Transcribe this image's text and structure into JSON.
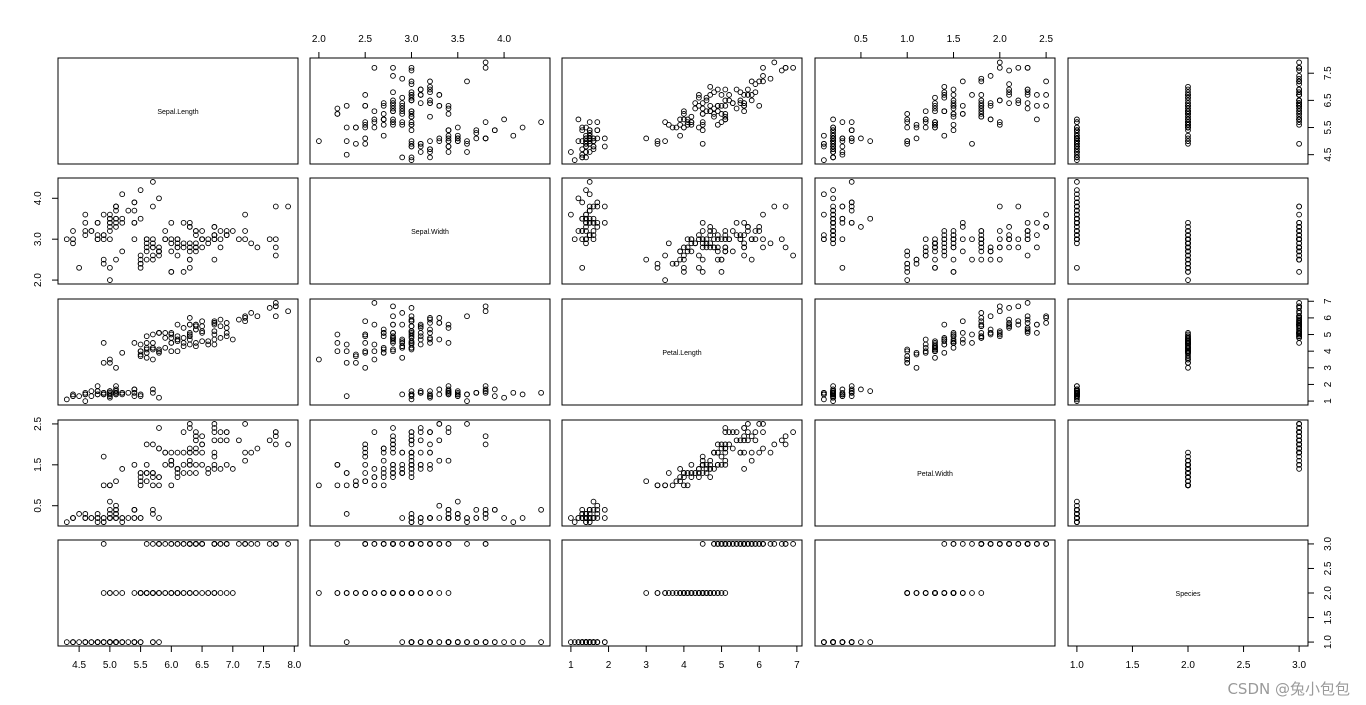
{
  "chart_data": {
    "type": "scatter_matrix",
    "variables": [
      "Sepal.Length",
      "Sepal.Width",
      "Petal.Length",
      "Petal.Width",
      "Species"
    ],
    "ranges": [
      [
        4.3,
        7.9
      ],
      [
        2.0,
        4.4
      ],
      [
        1.0,
        6.9
      ],
      [
        0.1,
        2.5
      ],
      [
        1,
        3
      ]
    ],
    "ticks": [
      [
        "4.5",
        "5.0",
        "5.5",
        "6.0",
        "6.5",
        "7.0",
        "7.5",
        "8.0"
      ],
      [
        "2.0",
        "2.5",
        "3.0",
        "3.5",
        "4.0"
      ],
      [
        "1",
        "2",
        "3",
        "4",
        "5",
        "6",
        "7"
      ],
      [
        "0.5",
        "1.0",
        "1.5",
        "2.0",
        "2.5"
      ],
      [
        "1.0",
        "1.5",
        "2.0",
        "2.5",
        "3.0"
      ]
    ],
    "left_axis_ticks": [
      [
        "4.5",
        "5.5",
        "6.5",
        "7.5"
      ],
      [
        "2.0",
        "3.0",
        "4.0"
      ],
      [
        "1",
        "2",
        "3",
        "4",
        "5",
        "6",
        "7"
      ],
      [
        "0.5",
        "1.5",
        "2.5"
      ],
      [
        "1.0",
        "1.5",
        "2.0",
        "2.5",
        "3.0"
      ]
    ],
    "point_style": "open-circle",
    "grid": false,
    "columns": [
      "Sepal.Length",
      "Sepal.Width",
      "Petal.Length",
      "Petal.Width",
      "Species"
    ],
    "rows": [
      [
        5.1,
        3.5,
        1.4,
        0.2,
        1
      ],
      [
        4.9,
        3.0,
        1.4,
        0.2,
        1
      ],
      [
        4.7,
        3.2,
        1.3,
        0.2,
        1
      ],
      [
        4.6,
        3.1,
        1.5,
        0.2,
        1
      ],
      [
        5.0,
        3.6,
        1.4,
        0.2,
        1
      ],
      [
        5.4,
        3.9,
        1.7,
        0.4,
        1
      ],
      [
        4.6,
        3.4,
        1.4,
        0.3,
        1
      ],
      [
        5.0,
        3.4,
        1.5,
        0.2,
        1
      ],
      [
        4.4,
        2.9,
        1.4,
        0.2,
        1
      ],
      [
        4.9,
        3.1,
        1.5,
        0.1,
        1
      ],
      [
        5.4,
        3.7,
        1.5,
        0.2,
        1
      ],
      [
        4.8,
        3.4,
        1.6,
        0.2,
        1
      ],
      [
        4.8,
        3.0,
        1.4,
        0.1,
        1
      ],
      [
        4.3,
        3.0,
        1.1,
        0.1,
        1
      ],
      [
        5.8,
        4.0,
        1.2,
        0.2,
        1
      ],
      [
        5.7,
        4.4,
        1.5,
        0.4,
        1
      ],
      [
        5.4,
        3.9,
        1.3,
        0.4,
        1
      ],
      [
        5.1,
        3.5,
        1.4,
        0.3,
        1
      ],
      [
        5.7,
        3.8,
        1.7,
        0.3,
        1
      ],
      [
        5.1,
        3.8,
        1.5,
        0.3,
        1
      ],
      [
        5.4,
        3.4,
        1.7,
        0.2,
        1
      ],
      [
        5.1,
        3.7,
        1.5,
        0.4,
        1
      ],
      [
        4.6,
        3.6,
        1.0,
        0.2,
        1
      ],
      [
        5.1,
        3.3,
        1.7,
        0.5,
        1
      ],
      [
        4.8,
        3.4,
        1.9,
        0.2,
        1
      ],
      [
        5.0,
        3.0,
        1.6,
        0.2,
        1
      ],
      [
        5.0,
        3.4,
        1.6,
        0.4,
        1
      ],
      [
        5.2,
        3.5,
        1.5,
        0.2,
        1
      ],
      [
        5.2,
        3.4,
        1.4,
        0.2,
        1
      ],
      [
        4.7,
        3.2,
        1.6,
        0.2,
        1
      ],
      [
        4.8,
        3.1,
        1.6,
        0.2,
        1
      ],
      [
        5.4,
        3.4,
        1.5,
        0.4,
        1
      ],
      [
        5.2,
        4.1,
        1.5,
        0.1,
        1
      ],
      [
        5.5,
        4.2,
        1.4,
        0.2,
        1
      ],
      [
        4.9,
        3.1,
        1.5,
        0.2,
        1
      ],
      [
        5.0,
        3.2,
        1.2,
        0.2,
        1
      ],
      [
        5.5,
        3.5,
        1.3,
        0.2,
        1
      ],
      [
        4.9,
        3.6,
        1.4,
        0.1,
        1
      ],
      [
        4.4,
        3.0,
        1.3,
        0.2,
        1
      ],
      [
        5.1,
        3.4,
        1.5,
        0.2,
        1
      ],
      [
        5.0,
        3.5,
        1.3,
        0.3,
        1
      ],
      [
        4.5,
        2.3,
        1.3,
        0.3,
        1
      ],
      [
        4.4,
        3.2,
        1.3,
        0.2,
        1
      ],
      [
        5.0,
        3.5,
        1.6,
        0.6,
        1
      ],
      [
        5.1,
        3.8,
        1.9,
        0.4,
        1
      ],
      [
        4.8,
        3.0,
        1.4,
        0.3,
        1
      ],
      [
        5.1,
        3.8,
        1.6,
        0.2,
        1
      ],
      [
        4.6,
        3.2,
        1.4,
        0.2,
        1
      ],
      [
        5.3,
        3.7,
        1.5,
        0.2,
        1
      ],
      [
        5.0,
        3.3,
        1.4,
        0.2,
        1
      ],
      [
        7.0,
        3.2,
        4.7,
        1.4,
        2
      ],
      [
        6.4,
        3.2,
        4.5,
        1.5,
        2
      ],
      [
        6.9,
        3.1,
        4.9,
        1.5,
        2
      ],
      [
        5.5,
        2.3,
        4.0,
        1.3,
        2
      ],
      [
        6.5,
        2.8,
        4.6,
        1.5,
        2
      ],
      [
        5.7,
        2.8,
        4.5,
        1.3,
        2
      ],
      [
        6.3,
        3.3,
        4.7,
        1.6,
        2
      ],
      [
        4.9,
        2.4,
        3.3,
        1.0,
        2
      ],
      [
        6.6,
        2.9,
        4.6,
        1.3,
        2
      ],
      [
        5.2,
        2.7,
        3.9,
        1.4,
        2
      ],
      [
        5.0,
        2.0,
        3.5,
        1.0,
        2
      ],
      [
        5.9,
        3.0,
        4.2,
        1.5,
        2
      ],
      [
        6.0,
        2.2,
        4.0,
        1.0,
        2
      ],
      [
        6.1,
        2.9,
        4.7,
        1.4,
        2
      ],
      [
        5.6,
        2.9,
        3.6,
        1.3,
        2
      ],
      [
        6.7,
        3.1,
        4.4,
        1.4,
        2
      ],
      [
        5.6,
        3.0,
        4.5,
        1.5,
        2
      ],
      [
        5.8,
        2.7,
        4.1,
        1.0,
        2
      ],
      [
        6.2,
        2.2,
        4.5,
        1.5,
        2
      ],
      [
        5.6,
        2.5,
        3.9,
        1.1,
        2
      ],
      [
        5.9,
        3.2,
        4.8,
        1.8,
        2
      ],
      [
        6.1,
        2.8,
        4.0,
        1.3,
        2
      ],
      [
        6.3,
        2.5,
        4.9,
        1.5,
        2
      ],
      [
        6.1,
        2.8,
        4.7,
        1.2,
        2
      ],
      [
        6.4,
        2.9,
        4.3,
        1.3,
        2
      ],
      [
        6.6,
        3.0,
        4.4,
        1.4,
        2
      ],
      [
        6.8,
        2.8,
        4.8,
        1.4,
        2
      ],
      [
        6.7,
        3.0,
        5.0,
        1.7,
        2
      ],
      [
        6.0,
        2.9,
        4.5,
        1.5,
        2
      ],
      [
        5.7,
        2.6,
        3.5,
        1.0,
        2
      ],
      [
        5.5,
        2.4,
        3.8,
        1.1,
        2
      ],
      [
        5.5,
        2.4,
        3.7,
        1.0,
        2
      ],
      [
        5.8,
        2.7,
        3.9,
        1.2,
        2
      ],
      [
        6.0,
        2.7,
        5.1,
        1.6,
        2
      ],
      [
        5.4,
        3.0,
        4.5,
        1.5,
        2
      ],
      [
        6.0,
        3.4,
        4.5,
        1.6,
        2
      ],
      [
        6.7,
        3.1,
        4.7,
        1.5,
        2
      ],
      [
        6.3,
        2.3,
        4.4,
        1.3,
        2
      ],
      [
        5.6,
        3.0,
        4.1,
        1.3,
        2
      ],
      [
        5.5,
        2.5,
        4.0,
        1.3,
        2
      ],
      [
        5.5,
        2.6,
        4.4,
        1.2,
        2
      ],
      [
        6.1,
        3.0,
        4.6,
        1.4,
        2
      ],
      [
        5.8,
        2.6,
        4.0,
        1.2,
        2
      ],
      [
        5.0,
        2.3,
        3.3,
        1.0,
        2
      ],
      [
        5.6,
        2.7,
        4.2,
        1.3,
        2
      ],
      [
        5.7,
        3.0,
        4.2,
        1.2,
        2
      ],
      [
        5.7,
        2.9,
        4.2,
        1.3,
        2
      ],
      [
        6.2,
        2.9,
        4.3,
        1.3,
        2
      ],
      [
        5.1,
        2.5,
        3.0,
        1.1,
        2
      ],
      [
        5.7,
        2.8,
        4.1,
        1.3,
        2
      ],
      [
        6.3,
        3.3,
        6.0,
        2.5,
        3
      ],
      [
        5.8,
        2.7,
        5.1,
        1.9,
        3
      ],
      [
        7.1,
        3.0,
        5.9,
        2.1,
        3
      ],
      [
        6.3,
        2.9,
        5.6,
        1.8,
        3
      ],
      [
        6.5,
        3.0,
        5.8,
        2.2,
        3
      ],
      [
        7.6,
        3.0,
        6.6,
        2.1,
        3
      ],
      [
        4.9,
        2.5,
        4.5,
        1.7,
        3
      ],
      [
        7.3,
        2.9,
        6.3,
        1.8,
        3
      ],
      [
        6.7,
        2.5,
        5.8,
        1.8,
        3
      ],
      [
        7.2,
        3.6,
        6.1,
        2.5,
        3
      ],
      [
        6.5,
        3.2,
        5.1,
        2.0,
        3
      ],
      [
        6.4,
        2.7,
        5.3,
        1.9,
        3
      ],
      [
        6.8,
        3.0,
        5.5,
        2.1,
        3
      ],
      [
        5.7,
        2.5,
        5.0,
        2.0,
        3
      ],
      [
        5.8,
        2.8,
        5.1,
        2.4,
        3
      ],
      [
        6.4,
        3.2,
        5.3,
        2.3,
        3
      ],
      [
        6.5,
        3.0,
        5.5,
        1.8,
        3
      ],
      [
        7.7,
        3.8,
        6.7,
        2.2,
        3
      ],
      [
        7.7,
        2.6,
        6.9,
        2.3,
        3
      ],
      [
        6.0,
        2.2,
        5.0,
        1.5,
        3
      ],
      [
        6.9,
        3.2,
        5.7,
        2.3,
        3
      ],
      [
        5.6,
        2.8,
        4.9,
        2.0,
        3
      ],
      [
        7.7,
        2.8,
        6.7,
        2.0,
        3
      ],
      [
        6.3,
        2.7,
        4.9,
        1.8,
        3
      ],
      [
        6.7,
        3.3,
        5.7,
        2.1,
        3
      ],
      [
        7.2,
        3.2,
        6.0,
        1.8,
        3
      ],
      [
        6.2,
        2.8,
        4.8,
        1.8,
        3
      ],
      [
        6.1,
        3.0,
        4.9,
        1.8,
        3
      ],
      [
        6.4,
        2.8,
        5.6,
        2.1,
        3
      ],
      [
        7.2,
        3.0,
        5.8,
        1.6,
        3
      ],
      [
        7.4,
        2.8,
        6.1,
        1.9,
        3
      ],
      [
        7.9,
        3.8,
        6.4,
        2.0,
        3
      ],
      [
        6.4,
        2.8,
        5.6,
        2.2,
        3
      ],
      [
        6.3,
        2.8,
        5.1,
        1.5,
        3
      ],
      [
        6.1,
        2.6,
        5.6,
        1.4,
        3
      ],
      [
        7.7,
        3.0,
        6.1,
        2.3,
        3
      ],
      [
        6.3,
        3.4,
        5.6,
        2.4,
        3
      ],
      [
        6.4,
        3.1,
        5.5,
        1.8,
        3
      ],
      [
        6.0,
        3.0,
        4.8,
        1.8,
        3
      ],
      [
        6.9,
        3.1,
        5.4,
        2.1,
        3
      ],
      [
        6.7,
        3.1,
        5.6,
        2.4,
        3
      ],
      [
        6.9,
        3.1,
        5.1,
        2.3,
        3
      ],
      [
        5.8,
        2.7,
        5.1,
        1.9,
        3
      ],
      [
        6.8,
        3.2,
        5.9,
        2.3,
        3
      ],
      [
        6.7,
        3.3,
        5.7,
        2.5,
        3
      ],
      [
        6.7,
        3.0,
        5.2,
        2.3,
        3
      ],
      [
        6.3,
        2.5,
        5.0,
        1.9,
        3
      ],
      [
        6.5,
        3.0,
        5.2,
        2.0,
        3
      ],
      [
        6.2,
        3.4,
        5.4,
        2.3,
        3
      ],
      [
        5.9,
        3.0,
        5.1,
        1.8,
        3
      ]
    ]
  },
  "watermark": "CSDN @兔小包包"
}
